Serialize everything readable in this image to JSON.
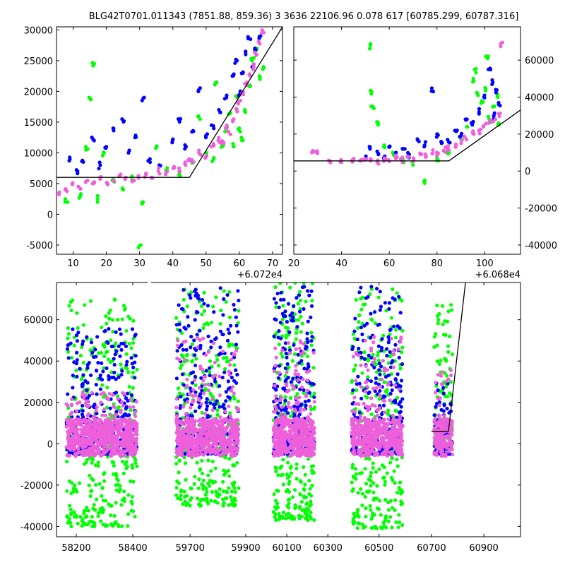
{
  "figure_title": "BLG42T0701.011343 (7851.88, 859.36)    3 3636 22106.96 0.078 617 [60785.299, 60787.316]",
  "colors": {
    "green": "#00ff00",
    "blue": "#0000ff",
    "magenta": "#ee5fdb",
    "model": "#000000"
  },
  "chart_data": [
    {
      "panel": "top-left",
      "type": "scatter",
      "x_offset_label": "+6.072e4",
      "xlim": [
        5,
        73
      ],
      "ylim": [
        -6500,
        30500
      ],
      "xticks": [
        "10",
        "20",
        "30",
        "40",
        "50",
        "60",
        "70"
      ],
      "yticks": [
        "-5000",
        "0",
        "5000",
        "10000",
        "15000",
        "20000",
        "25000",
        "30000"
      ],
      "model_line": [
        [
          5,
          6000
        ],
        [
          45,
          6000
        ],
        [
          73,
          30500
        ]
      ],
      "series": [
        {
          "color": "green",
          "points": [
            [
              8,
              2500
            ],
            [
              12,
              3000
            ],
            [
              14,
              11000
            ],
            [
              15,
              19000
            ],
            [
              16,
              24500
            ],
            [
              17,
              2500
            ],
            [
              19,
              10000
            ],
            [
              22,
              5500
            ],
            [
              25,
              4000
            ],
            [
              28,
              6000
            ],
            [
              30,
              -5000
            ],
            [
              31,
              2000
            ],
            [
              35,
              11000
            ],
            [
              38,
              7000
            ],
            [
              42,
              6500
            ],
            [
              46,
              8500
            ],
            [
              48,
              16000
            ],
            [
              50,
              10000
            ],
            [
              52,
              9000
            ],
            [
              53,
              21500
            ],
            [
              55,
              11000
            ],
            [
              56,
              14000
            ],
            [
              57,
              16500
            ],
            [
              58,
              11000
            ],
            [
              59,
              19000
            ],
            [
              60,
              14000
            ],
            [
              61,
              12000
            ],
            [
              62,
              17000
            ],
            [
              63,
              21000
            ],
            [
              64,
              25000
            ],
            [
              65,
              27000
            ],
            [
              66,
              22500
            ],
            [
              67,
              24000
            ]
          ]
        },
        {
          "color": "blue",
          "points": [
            [
              9,
              9000
            ],
            [
              11,
              7000
            ],
            [
              13,
              8500
            ],
            [
              16,
              12000
            ],
            [
              18,
              8000
            ],
            [
              20,
              11000
            ],
            [
              22,
              14000
            ],
            [
              25,
              15500
            ],
            [
              27,
              10000
            ],
            [
              29,
              12500
            ],
            [
              31,
              19000
            ],
            [
              33,
              9000
            ],
            [
              36,
              8000
            ],
            [
              40,
              12000
            ],
            [
              42,
              15500
            ],
            [
              44,
              11000
            ],
            [
              46,
              13500
            ],
            [
              48,
              20000
            ],
            [
              50,
              12500
            ],
            [
              52,
              14500
            ],
            [
              54,
              17000
            ],
            [
              56,
              19000
            ],
            [
              58,
              22500
            ],
            [
              59,
              25000
            ],
            [
              60,
              19500
            ],
            [
              61,
              23000
            ],
            [
              62,
              26500
            ],
            [
              63,
              28500
            ],
            [
              64,
              24000
            ],
            [
              65,
              27000
            ],
            [
              66,
              29000
            ]
          ]
        },
        {
          "color": "magenta",
          "points": [
            [
              6,
              3500
            ],
            [
              8,
              4000
            ],
            [
              10,
              5000
            ],
            [
              12,
              4500
            ],
            [
              14,
              5500
            ],
            [
              16,
              5000
            ],
            [
              18,
              6000
            ],
            [
              20,
              5000
            ],
            [
              22,
              5500
            ],
            [
              24,
              6500
            ],
            [
              26,
              6000
            ],
            [
              28,
              5500
            ],
            [
              30,
              6000
            ],
            [
              32,
              6500
            ],
            [
              34,
              6000
            ],
            [
              36,
              7000
            ],
            [
              38,
              6500
            ],
            [
              40,
              7500
            ],
            [
              42,
              7000
            ],
            [
              44,
              8000
            ],
            [
              45,
              9000
            ],
            [
              46,
              8500
            ],
            [
              48,
              10000
            ],
            [
              50,
              9500
            ],
            [
              52,
              11000
            ],
            [
              54,
              12000
            ],
            [
              55,
              11500
            ],
            [
              56,
              14000
            ],
            [
              57,
              13000
            ],
            [
              58,
              15500
            ],
            [
              59,
              17000
            ],
            [
              60,
              18000
            ],
            [
              61,
              19500
            ],
            [
              62,
              21000
            ],
            [
              63,
              22500
            ],
            [
              64,
              24000
            ],
            [
              65,
              26000
            ],
            [
              66,
              28000
            ],
            [
              67,
              29500
            ]
          ]
        }
      ]
    },
    {
      "panel": "top-right",
      "type": "scatter",
      "x_offset_label": "+6.068e4",
      "xlim": [
        20,
        115
      ],
      "ylim": [
        -45000,
        78000
      ],
      "xticks": [
        "20",
        "40",
        "60",
        "80",
        "100"
      ],
      "yticks": [
        "-40000",
        "-20000",
        "0",
        "20000",
        "40000",
        "60000"
      ],
      "model_line": [
        [
          20,
          5500
        ],
        [
          85,
          5500
        ],
        [
          115,
          33000
        ]
      ],
      "series": [
        {
          "color": "green",
          "points": [
            [
              52,
              68000
            ],
            [
              52,
              43000
            ],
            [
              53,
              35000
            ],
            [
              55,
              25000
            ],
            [
              58,
              14000
            ],
            [
              62,
              8500
            ],
            [
              66,
              6000
            ],
            [
              70,
              5000
            ],
            [
              75,
              -5000
            ],
            [
              80,
              7000
            ],
            [
              85,
              10000
            ],
            [
              90,
              18000
            ],
            [
              93,
              24000
            ],
            [
              95,
              50000
            ],
            [
              96,
              55000
            ],
            [
              97,
              41000
            ],
            [
              99,
              38000
            ],
            [
              100,
              45000
            ],
            [
              101,
              62000
            ],
            [
              102,
              28000
            ],
            [
              104,
              35000
            ],
            [
              105,
              40000
            ],
            [
              106,
              25000
            ]
          ]
        },
        {
          "color": "blue",
          "points": [
            [
              50,
              8000
            ],
            [
              52,
              12000
            ],
            [
              55,
              9000
            ],
            [
              58,
              7000
            ],
            [
              60,
              13000
            ],
            [
              63,
              10000
            ],
            [
              66,
              12000
            ],
            [
              68,
              9000
            ],
            [
              72,
              16000
            ],
            [
              75,
              14000
            ],
            [
              78,
              43000
            ],
            [
              80,
              20000
            ],
            [
              82,
              15000
            ],
            [
              85,
              17000
            ],
            [
              88,
              22000
            ],
            [
              90,
              19000
            ],
            [
              92,
              28000
            ],
            [
              95,
              25000
            ],
            [
              98,
              32000
            ],
            [
              100,
              40000
            ],
            [
              102,
              55000
            ],
            [
              103,
              48000
            ],
            [
              104,
              30000
            ],
            [
              105,
              44000
            ],
            [
              106,
              36000
            ]
          ]
        },
        {
          "color": "magenta",
          "points": [
            [
              28,
              10000
            ],
            [
              30,
              10000
            ],
            [
              35,
              5500
            ],
            [
              40,
              5000
            ],
            [
              45,
              5000
            ],
            [
              48,
              5500
            ],
            [
              50,
              6000
            ],
            [
              52,
              6500
            ],
            [
              55,
              5000
            ],
            [
              58,
              7000
            ],
            [
              60,
              6000
            ],
            [
              63,
              7500
            ],
            [
              65,
              6500
            ],
            [
              68,
              8000
            ],
            [
              70,
              7000
            ],
            [
              73,
              9000
            ],
            [
              75,
              8000
            ],
            [
              78,
              9500
            ],
            [
              80,
              10000
            ],
            [
              83,
              11000
            ],
            [
              85,
              12000
            ],
            [
              88,
              13000
            ],
            [
              90,
              15000
            ],
            [
              92,
              17000
            ],
            [
              95,
              20000
            ],
            [
              98,
              22000
            ],
            [
              100,
              24000
            ],
            [
              102,
              26000
            ],
            [
              104,
              28000
            ],
            [
              106,
              31000
            ],
            [
              107,
              69000
            ]
          ]
        }
      ]
    },
    {
      "panel": "bottom",
      "type": "scatter",
      "segments": [
        {
          "xlim": [
            58130,
            58450
          ],
          "xticks": [
            "58200",
            "58400"
          ]
        },
        {
          "xlim": [
            59560,
            59900
          ],
          "xticks": [
            "59700",
            "59900"
          ]
        },
        {
          "xlim": [
            59900,
            60320
          ],
          "xticks": [
            "60100",
            "60300"
          ]
        },
        {
          "xlim": [
            60320,
            61040
          ],
          "xticks": [
            "60500",
            "60700",
            "60900"
          ]
        }
      ],
      "ylim": [
        -45000,
        78000
      ],
      "yticks": [
        "-40000",
        "-20000",
        "0",
        "20000",
        "40000",
        "60000"
      ],
      "model_line": [
        [
          60700,
          6000
        ],
        [
          60765,
          6000
        ],
        [
          60830,
          78000
        ]
      ],
      "clusters": [
        {
          "x_range": [
            58165,
            58415
          ],
          "green_max": 70000,
          "blue_max": 56000,
          "magenta_max": 25000,
          "low_min": -40000
        },
        {
          "x_range": [
            59650,
            59875
          ],
          "green_max": 76000,
          "blue_max": 76000,
          "magenta_max": 52000,
          "low_min": -30000
        },
        {
          "x_range": [
            60035,
            60235
          ],
          "green_max": 78000,
          "blue_max": 76000,
          "magenta_max": 50000,
          "low_min": -37000
        },
        {
          "x_range": [
            60395,
            60590
          ],
          "green_max": 77000,
          "blue_max": 76000,
          "magenta_max": 52000,
          "low_min": -41000
        },
        {
          "x_range": [
            60710,
            60780
          ],
          "green_max": 69000,
          "blue_max": 30000,
          "magenta_max": 40000,
          "low_min": -2000
        }
      ]
    }
  ]
}
